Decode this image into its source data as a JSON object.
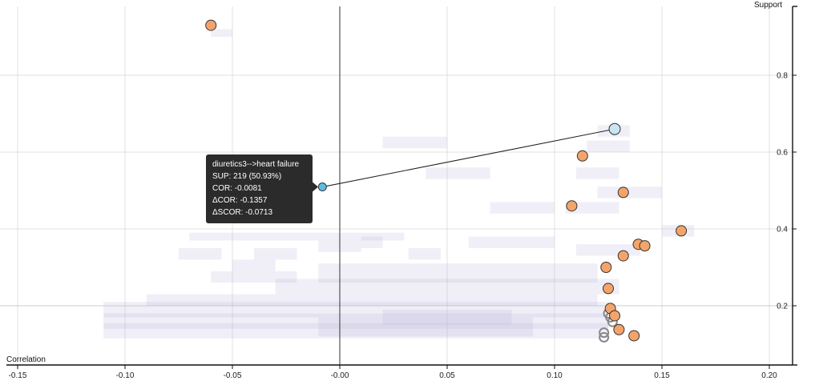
{
  "chart_data": {
    "type": "scatter",
    "xlabel": "Correlation",
    "ylabel": "Support",
    "xlim": [
      -0.15,
      0.2
    ],
    "ylim": [
      0.1,
      1.0
    ],
    "x_ticks": [
      -0.15,
      -0.1,
      -0.05,
      0.0,
      0.05,
      0.1,
      0.15,
      0.2
    ],
    "x_tick_labels": [
      "-0.15",
      "-0.10",
      "-0.05",
      "-0.00",
      "0.05",
      "0.10",
      "0.15",
      "0.20"
    ],
    "y_ticks": [
      0.2,
      0.4,
      0.6,
      0.8
    ],
    "y_tick_labels": [
      "0.2",
      "0.4",
      "0.6",
      "0.8"
    ],
    "grid": true,
    "colors": {
      "highlight": "#f4a46a",
      "selected_from": "#5bbde6",
      "selected_to": "#c8e6f2",
      "outline": "#888888",
      "density": "#b9b6d9",
      "tooltip_bg": "#2b2b2b"
    },
    "highlighted_points": [
      {
        "x": -0.06,
        "y": 0.93
      },
      {
        "x": 0.113,
        "y": 0.59
      },
      {
        "x": 0.132,
        "y": 0.495
      },
      {
        "x": 0.108,
        "y": 0.46
      },
      {
        "x": 0.159,
        "y": 0.395
      },
      {
        "x": 0.139,
        "y": 0.36
      },
      {
        "x": 0.142,
        "y": 0.356
      },
      {
        "x": 0.132,
        "y": 0.33
      },
      {
        "x": 0.124,
        "y": 0.3
      },
      {
        "x": 0.125,
        "y": 0.245
      },
      {
        "x": 0.126,
        "y": 0.193
      },
      {
        "x": 0.128,
        "y": 0.174
      },
      {
        "x": 0.13,
        "y": 0.138
      },
      {
        "x": 0.137,
        "y": 0.122
      }
    ],
    "outline_points": [
      {
        "x": 0.125,
        "y": 0.18
      },
      {
        "x": 0.126,
        "y": 0.17
      },
      {
        "x": 0.127,
        "y": 0.158
      },
      {
        "x": 0.123,
        "y": 0.13
      },
      {
        "x": 0.123,
        "y": 0.118
      }
    ],
    "selected_rule": {
      "from": {
        "x": -0.0081,
        "y": 0.5093
      },
      "to": {
        "x": 0.128,
        "y": 0.66
      }
    },
    "density_cells": [
      {
        "x0": -0.06,
        "y0": 0.9,
        "w": 0.01,
        "h": 0.02
      },
      {
        "x0": 0.12,
        "y0": 0.64,
        "w": 0.015,
        "h": 0.03
      },
      {
        "x0": 0.02,
        "y0": 0.61,
        "w": 0.03,
        "h": 0.03
      },
      {
        "x0": 0.115,
        "y0": 0.6,
        "w": 0.02,
        "h": 0.03
      },
      {
        "x0": -0.05,
        "y0": 0.53,
        "w": 0.025,
        "h": 0.03
      },
      {
        "x0": 0.04,
        "y0": 0.53,
        "w": 0.03,
        "h": 0.03
      },
      {
        "x0": 0.11,
        "y0": 0.53,
        "w": 0.02,
        "h": 0.03
      },
      {
        "x0": 0.12,
        "y0": 0.48,
        "w": 0.03,
        "h": 0.03
      },
      {
        "x0": 0.07,
        "y0": 0.44,
        "w": 0.03,
        "h": 0.03
      },
      {
        "x0": 0.105,
        "y0": 0.44,
        "w": 0.025,
        "h": 0.03
      },
      {
        "x0": 0.15,
        "y0": 0.38,
        "w": 0.015,
        "h": 0.03
      },
      {
        "x0": -0.07,
        "y0": 0.37,
        "w": 0.1,
        "h": 0.02
      },
      {
        "x0": -0.075,
        "y0": 0.32,
        "w": 0.02,
        "h": 0.03
      },
      {
        "x0": -0.04,
        "y0": 0.32,
        "w": 0.02,
        "h": 0.03
      },
      {
        "x0": -0.01,
        "y0": 0.34,
        "w": 0.02,
        "h": 0.03
      },
      {
        "x0": 0.01,
        "y0": 0.35,
        "w": 0.01,
        "h": 0.03
      },
      {
        "x0": 0.032,
        "y0": 0.32,
        "w": 0.015,
        "h": 0.03
      },
      {
        "x0": 0.06,
        "y0": 0.35,
        "w": 0.04,
        "h": 0.03
      },
      {
        "x0": 0.11,
        "y0": 0.33,
        "w": 0.03,
        "h": 0.03
      },
      {
        "x0": -0.05,
        "y0": 0.29,
        "w": 0.02,
        "h": 0.03
      },
      {
        "x0": -0.01,
        "y0": 0.26,
        "w": 0.13,
        "h": 0.05
      },
      {
        "x0": -0.06,
        "y0": 0.26,
        "w": 0.04,
        "h": 0.03
      },
      {
        "x0": -0.03,
        "y0": 0.23,
        "w": 0.16,
        "h": 0.04
      },
      {
        "x0": -0.09,
        "y0": 0.2,
        "w": 0.21,
        "h": 0.03
      },
      {
        "x0": -0.11,
        "y0": 0.17,
        "w": 0.235,
        "h": 0.04
      },
      {
        "x0": -0.11,
        "y0": 0.14,
        "w": 0.235,
        "h": 0.04
      },
      {
        "x0": -0.11,
        "y0": 0.115,
        "w": 0.235,
        "h": 0.04
      },
      {
        "x0": -0.01,
        "y0": 0.12,
        "w": 0.1,
        "h": 0.05
      },
      {
        "x0": 0.02,
        "y0": 0.15,
        "w": 0.06,
        "h": 0.04
      }
    ],
    "tooltip": {
      "lines": [
        "diuretics3-->heart failure",
        "SUP: 219 (50.93%)",
        "COR: -0.0081",
        "ΔCOR: -0.1357",
        "ΔSCOR: -0.0713"
      ]
    }
  }
}
